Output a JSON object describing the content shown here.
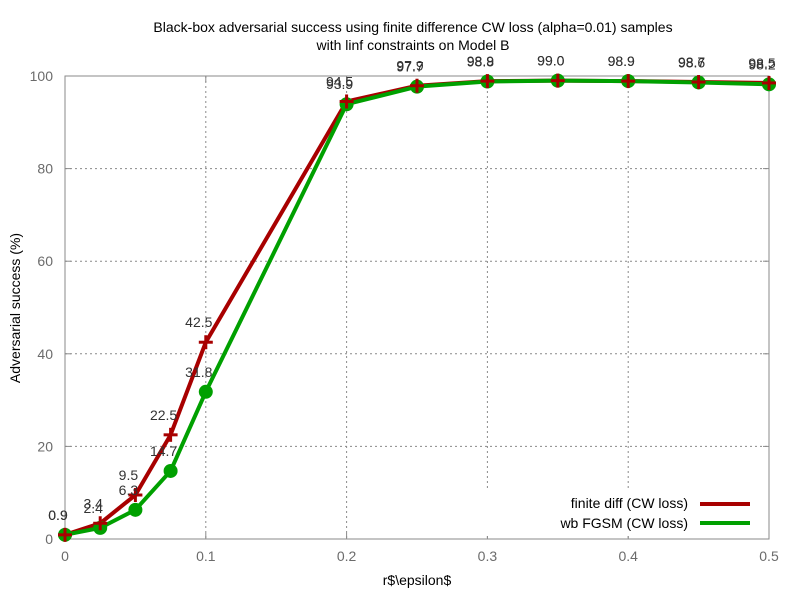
{
  "chart_data": {
    "type": "line",
    "title_lines": [
      "Black-box adversarial success using finite difference CW loss (alpha=0.01) samples",
      "with linf constraints on Model B"
    ],
    "xlabel": "r$\\epsilon$",
    "ylabel": "Adversarial success (%)",
    "xlim": [
      0,
      0.5
    ],
    "ylim": [
      0,
      100
    ],
    "xticks": [
      0,
      0.1,
      0.2,
      0.3,
      0.4,
      0.5
    ],
    "xtick_labels": [
      "0",
      "0.1",
      "0.2",
      "0.3",
      "0.4",
      "0.5"
    ],
    "yticks": [
      0,
      20,
      40,
      60,
      80,
      100
    ],
    "ytick_labels": [
      "0",
      "20",
      "40",
      "60",
      "80",
      "100"
    ],
    "grid": true,
    "legend_position": "bottom-right",
    "series": [
      {
        "name": "finite diff (CW loss)",
        "color": "#a80000",
        "marker": "plus",
        "x": [
          0,
          0.025,
          0.05,
          0.075,
          0.1,
          0.2,
          0.25,
          0.3,
          0.35,
          0.4,
          0.45,
          0.5
        ],
        "y": [
          0.9,
          3.4,
          9.5,
          22.5,
          42.5,
          94.5,
          97.9,
          98.9,
          99.0,
          98.9,
          98.7,
          98.5
        ],
        "labels": [
          "0.9",
          "3.4",
          "9.5",
          "22.5",
          "42.5",
          "94.5",
          "97.9",
          "98.9",
          "99.0",
          "98.9",
          "98.7",
          "98.5"
        ]
      },
      {
        "name": "wb FGSM (CW loss)",
        "color": "#00a000",
        "marker": "circle",
        "x": [
          0,
          0.025,
          0.05,
          0.075,
          0.1,
          0.2,
          0.25,
          0.3,
          0.35,
          0.4,
          0.45,
          0.5
        ],
        "y": [
          0.9,
          2.4,
          6.3,
          14.7,
          31.8,
          93.9,
          97.7,
          98.8,
          99.0,
          98.9,
          98.6,
          98.2
        ],
        "labels": [
          "0.9",
          "2.4",
          "6.3",
          "14.7",
          "31.8",
          "93.9",
          "97.7",
          "98.8",
          "99.0",
          "98.9",
          "98.6",
          "98.2"
        ]
      }
    ]
  }
}
